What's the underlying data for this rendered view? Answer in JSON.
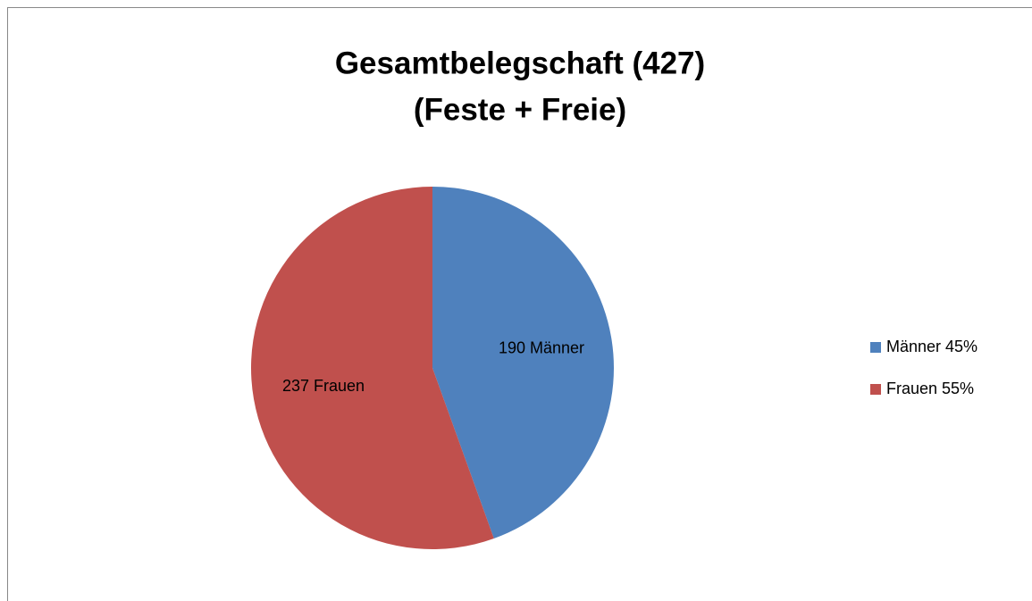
{
  "chart_data": {
    "type": "pie",
    "title": "Gesamtbelegschaft (427)",
    "subtitle": "(Feste + Freie)",
    "categories": [
      "Männer 45%",
      "Frauen 55%"
    ],
    "values": [
      190,
      237
    ],
    "value_labels": [
      "190 Männer",
      "237 Frauen"
    ],
    "colors": [
      "#4f81bd",
      "#c0504d"
    ],
    "legend": "right"
  }
}
